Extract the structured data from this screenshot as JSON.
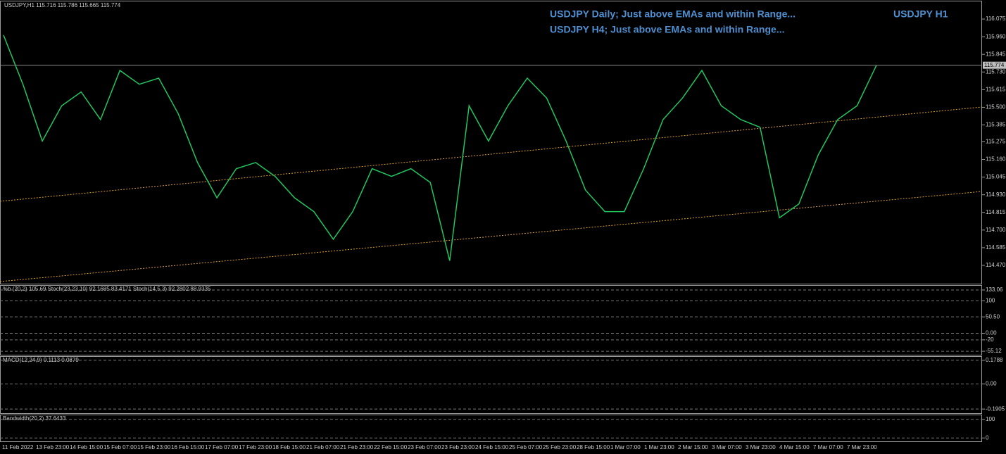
{
  "header": {
    "symbol_info": "USDJPY,H1 115.716 115.786 115.665 115.774",
    "annotations": [
      "USDJPY Daily; Just above EMAs and within Range...",
      "USDJPY H4; Just above EMAs and within Range..."
    ],
    "timeframe_label": "USDJPY H1"
  },
  "main_panel": {
    "ylim": [
      114.346,
      116.19
    ],
    "ticks": [
      116.075,
      {
        "value": 115.96,
        "label": "115.960"
      },
      115.845,
      {
        "value": 115.73,
        "label": "115.730"
      },
      115.615,
      {
        "value": 115.5,
        "label": "115.500"
      },
      115.385,
      115.275,
      {
        "value": 115.16,
        "label": "115.160"
      },
      115.045,
      {
        "value": 114.93,
        "label": "114.930"
      },
      114.815,
      {
        "value": 114.7,
        "label": "114.700"
      },
      114.585,
      {
        "value": 114.47,
        "label": "114.470"
      }
    ],
    "current_price": 115.774,
    "price_line": {
      "color": "#22c55e",
      "values": [
        115.97,
        115.65,
        115.28,
        115.51,
        115.6,
        115.42,
        115.74,
        115.65,
        115.69,
        115.46,
        115.14,
        114.91,
        115.1,
        115.14,
        115.05,
        114.91,
        114.82,
        114.64,
        114.82,
        115.1,
        115.05,
        115.1,
        115.01,
        114.5,
        115.51,
        115.28,
        115.51,
        115.69,
        115.56,
        115.28,
        114.96,
        114.82,
        114.82,
        115.1,
        115.42,
        115.56,
        115.74,
        115.51,
        115.42,
        115.37,
        114.78,
        114.87,
        115.19,
        115.42,
        115.51,
        115.774
      ]
    }
  },
  "oscillator_panel": {
    "label": "%b (20,2) 105.69  Stoch(23,23,10) 92.1685 83.4171  Stoch(14,5,3) 92.2802 88.9335",
    "ylim": [
      -67.9,
      145.9
    ],
    "ticks": [
      133.06,
      100,
      {
        "value": 50.5,
        "label": "50.50"
      },
      {
        "value": 0,
        "label": "0.00"
      },
      -20,
      -55.12
    ]
  },
  "macd_panel": {
    "label": "MACD(12,24,9) 0.1113 0.0879",
    "ylim": [
      -0.227,
      0.205
    ],
    "ticks": [
      0.1788,
      {
        "value": 0,
        "label": "0.00"
      },
      -0.1905
    ]
  },
  "bandwidth_panel": {
    "label": "Bandwidth(20,2) 37.6433",
    "ylim": [
      -22,
      122
    ],
    "ticks": [
      100,
      0
    ]
  },
  "time_axis": [
    "11 Feb 2022",
    "13 Feb 23:00",
    "14 Feb 15:00",
    "15 Feb 07:00",
    "15 Feb 23:00",
    "16 Feb 15:00",
    "17 Feb 07:00",
    "17 Feb 23:00",
    "18 Feb 15:00",
    "21 Feb 07:00",
    "21 Feb 23:00",
    "22 Feb 15:00",
    "23 Feb 07:00",
    "23 Feb 23:00",
    "24 Feb 15:00",
    "25 Feb 07:00",
    "25 Feb 23:00",
    "28 Feb 15:00",
    "1 Mar 07:00",
    "1 Mar 23:00",
    "2 Mar 15:00",
    "3 Mar 07:00",
    "3 Mar 23:00",
    "4 Mar 15:00",
    "7 Mar 07:00",
    "7 Mar 23:00"
  ]
}
